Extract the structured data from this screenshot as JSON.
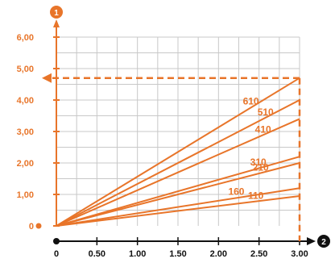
{
  "chart_data": {
    "type": "line",
    "title": "",
    "xlabel": "",
    "ylabel": "",
    "xlim": [
      0,
      3.0
    ],
    "ylim": [
      0,
      6.0
    ],
    "grid": true,
    "x_ticks": [
      "0",
      "0.50",
      "1.00",
      "1.50",
      "2.00",
      "2.50",
      "3.00"
    ],
    "x_tick_values": [
      0,
      0.5,
      1.0,
      1.5,
      2.0,
      2.5,
      3.0
    ],
    "y_ticks": [
      "0",
      "1,00",
      "2,00",
      "3,00",
      "4,00",
      "5,00",
      "6,00"
    ],
    "y_tick_values": [
      0,
      1,
      2,
      3,
      4,
      5,
      6
    ],
    "series": [
      {
        "name": "610",
        "x": [
          0,
          3.0
        ],
        "y": [
          0,
          4.7
        ]
      },
      {
        "name": "510",
        "x": [
          0,
          3.0
        ],
        "y": [
          0,
          4.0
        ]
      },
      {
        "name": "410",
        "x": [
          0,
          3.0
        ],
        "y": [
          0,
          3.4
        ]
      },
      {
        "name": "310",
        "x": [
          0,
          3.0
        ],
        "y": [
          0,
          2.2
        ]
      },
      {
        "name": "210",
        "x": [
          0,
          3.0
        ],
        "y": [
          0,
          2.0
        ]
      },
      {
        "name": "160",
        "x": [
          0,
          3.0
        ],
        "y": [
          0,
          1.2
        ]
      },
      {
        "name": "110",
        "x": [
          0,
          3.0
        ],
        "y": [
          0,
          0.95
        ]
      }
    ],
    "reference": {
      "x": 3.0,
      "y": 4.7
    },
    "axis_markers": {
      "y": "1",
      "x": "2"
    },
    "colors": {
      "line": "#e8752a",
      "grid": "#c8c8c8",
      "axis": "#111111"
    }
  }
}
